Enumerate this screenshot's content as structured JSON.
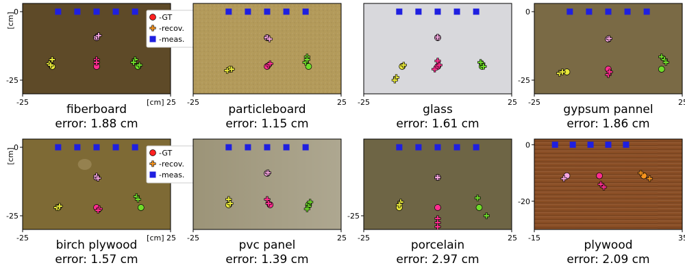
{
  "figure": {
    "unit_label": "[cm]",
    "error_prefix": "error: "
  },
  "legend": [
    {
      "label": "-GT",
      "marker": "circle",
      "color": "#ff2020"
    },
    {
      "label": "-recov.",
      "marker": "plus",
      "color": "#f7941d"
    },
    {
      "label": "-meas.",
      "marker": "square",
      "color": "#1f1fe0"
    }
  ],
  "chart_data": [
    {
      "type": "scatter",
      "title": "fiberboard",
      "error": "1.88 cm",
      "background": "#5e4a28",
      "texture": "plain",
      "xlim": [
        -25,
        25
      ],
      "ylim": [
        -30,
        3
      ],
      "xticks": [
        "-25",
        "[cm] 25"
      ],
      "yticks": [
        "0",
        "-25"
      ],
      "measured": [
        [
          -13,
          0
        ],
        [
          -6.5,
          0
        ],
        [
          0,
          0
        ],
        [
          6.5,
          0
        ],
        [
          13,
          0
        ]
      ],
      "gt": [
        [
          -15,
          -20
        ],
        [
          0,
          -20
        ],
        [
          14,
          -20
        ],
        [
          0,
          -9.5
        ]
      ],
      "recovered": [
        [
          -16,
          -19
        ],
        [
          -15.5,
          -19.5
        ],
        [
          -15,
          -17.5
        ],
        [
          0,
          -17.5
        ],
        [
          0,
          -18.5
        ],
        [
          13,
          -17.5
        ],
        [
          12.5,
          -18.5
        ],
        [
          14.5,
          -19.5
        ],
        [
          0,
          -9.2
        ],
        [
          0.7,
          -8.7
        ]
      ],
      "colors": [
        "#e8e83a",
        "#ff2e8f",
        "#6fdc2a",
        "#f7a6e0"
      ]
    },
    {
      "type": "scatter",
      "title": "particleboard",
      "error": "1.15 cm",
      "background": "#b39a5a",
      "texture": "speckle",
      "xlim": [
        -25,
        25
      ],
      "ylim": [
        -30,
        3
      ],
      "xticks": [
        "-25",
        "25"
      ],
      "yticks": [],
      "measured": [
        [
          -13,
          0
        ],
        [
          -6.5,
          0
        ],
        [
          0,
          0
        ],
        [
          6.5,
          0
        ],
        [
          13,
          0
        ]
      ],
      "gt": [
        [
          -12.5,
          -21
        ],
        [
          0,
          -20
        ],
        [
          14,
          -20
        ],
        [
          0,
          -9.5
        ]
      ],
      "recovered": [
        [
          -13.5,
          -21.5
        ],
        [
          -12,
          -21
        ],
        [
          0.5,
          -19.5
        ],
        [
          1,
          -19
        ],
        [
          13.5,
          -16.5
        ],
        [
          13,
          -18.5
        ],
        [
          13.5,
          -17.5
        ],
        [
          0,
          -9.5
        ],
        [
          0.8,
          -10
        ]
      ],
      "colors": [
        "#e8e83a",
        "#ff2e8f",
        "#6fdc2a",
        "#f7a6e0"
      ]
    },
    {
      "type": "scatter",
      "title": "glass",
      "error": "1.61 cm",
      "background": "#d8d8dc",
      "texture": "plain",
      "xlim": [
        -25,
        25
      ],
      "ylim": [
        -30,
        3
      ],
      "xticks": [
        "-25",
        "25"
      ],
      "yticks": [],
      "measured": [
        [
          -13,
          0
        ],
        [
          -6.5,
          0
        ],
        [
          0,
          0
        ],
        [
          6.5,
          0
        ],
        [
          13,
          0
        ]
      ],
      "gt": [
        [
          -12,
          -20
        ],
        [
          0,
          -20
        ],
        [
          15,
          -20
        ],
        [
          0,
          -9.5
        ]
      ],
      "recovered": [
        [
          -14,
          -24
        ],
        [
          -14.5,
          -25
        ],
        [
          -11.5,
          -19.5
        ],
        [
          0,
          -18
        ],
        [
          -1,
          -21
        ],
        [
          0.5,
          -19.5
        ],
        [
          15,
          -19
        ],
        [
          15.5,
          -20
        ],
        [
          14.5,
          -18.5
        ],
        [
          0,
          -9.3
        ]
      ],
      "colors": [
        "#e8e83a",
        "#ff2e8f",
        "#6fdc2a",
        "#f7a6e0"
      ]
    },
    {
      "type": "scatter",
      "title": "gypsum pannel",
      "error": "1.86 cm",
      "background": "#7a6a45",
      "texture": "plain",
      "xlim": [
        -25,
        25
      ],
      "ylim": [
        -30,
        3
      ],
      "xticks": [
        "-25",
        "25"
      ],
      "yticks": [
        "0",
        "-25"
      ],
      "measured": [
        [
          -13,
          0
        ],
        [
          -6.5,
          0
        ],
        [
          0,
          0
        ],
        [
          6.5,
          0
        ],
        [
          13,
          0
        ]
      ],
      "gt": [
        [
          -14,
          -22
        ],
        [
          0,
          -21
        ],
        [
          18,
          -21
        ],
        [
          0,
          -10
        ]
      ],
      "recovered": [
        [
          -16.5,
          -22.5
        ],
        [
          -15.5,
          -22
        ],
        [
          0,
          -23
        ],
        [
          0.5,
          -22
        ],
        [
          18,
          -16.5
        ],
        [
          19,
          -17.5
        ],
        [
          19.5,
          -18.5
        ],
        [
          0.3,
          -9.8
        ]
      ],
      "colors": [
        "#e8e83a",
        "#ff2e8f",
        "#6fdc2a",
        "#f7a6e0"
      ]
    },
    {
      "type": "scatter",
      "title": "birch plywood",
      "error": "1.57 cm",
      "background": "#7e6a35",
      "texture": "knot",
      "xlim": [
        -25,
        25
      ],
      "ylim": [
        -30,
        3
      ],
      "xticks": [
        "-25",
        "[cm] 25"
      ],
      "yticks": [
        "0",
        "-25"
      ],
      "measured": [
        [
          -13,
          0
        ],
        [
          -6.5,
          0
        ],
        [
          0,
          0
        ],
        [
          6.5,
          0
        ],
        [
          13,
          0
        ]
      ],
      "gt": [
        [
          -13,
          -22
        ],
        [
          0,
          -22
        ],
        [
          15,
          -22
        ],
        [
          0,
          -11
        ]
      ],
      "recovered": [
        [
          -13.5,
          -22
        ],
        [
          -12.5,
          -21.5
        ],
        [
          1,
          -22.5
        ],
        [
          0.5,
          -23
        ],
        [
          13.5,
          -18
        ],
        [
          14,
          -19
        ],
        [
          0,
          -10.5
        ],
        [
          0.5,
          -11.3
        ]
      ],
      "colors": [
        "#e8e83a",
        "#ff2e8f",
        "#6fdc2a",
        "#f7a6e0"
      ]
    },
    {
      "type": "scatter",
      "title": "pvc panel",
      "error": "1.39 cm",
      "background": "#9c9478",
      "texture": "gradient",
      "xlim": [
        -25,
        25
      ],
      "ylim": [
        -30,
        3
      ],
      "xticks": [
        "-25",
        "25"
      ],
      "yticks": [],
      "measured": [
        [
          -13,
          0
        ],
        [
          -6.5,
          0
        ],
        [
          0,
          0
        ],
        [
          6.5,
          0
        ],
        [
          13,
          0
        ]
      ],
      "gt": [
        [
          -13,
          -21
        ],
        [
          1,
          -21
        ],
        [
          14,
          -21
        ],
        [
          0,
          -9.5
        ]
      ],
      "recovered": [
        [
          -13,
          -19
        ],
        [
          -12.5,
          -20.5
        ],
        [
          0,
          -19
        ],
        [
          0.5,
          -20.5
        ],
        [
          14.5,
          -20
        ],
        [
          14,
          -21.5
        ],
        [
          13.5,
          -22.5
        ],
        [
          0.3,
          -9.3
        ]
      ],
      "colors": [
        "#e8e83a",
        "#ff2e8f",
        "#6fdc2a",
        "#f7a6e0"
      ]
    },
    {
      "type": "scatter",
      "title": "porcelain",
      "error": "2.97 cm",
      "background": "#6e6545",
      "texture": "plain",
      "xlim": [
        -25,
        25
      ],
      "ylim": [
        -30,
        3
      ],
      "xticks": [
        "-25",
        "25"
      ],
      "yticks": [
        "-25"
      ],
      "measured": [
        [
          -13,
          0
        ],
        [
          -6.5,
          0
        ],
        [
          0,
          0
        ],
        [
          6.5,
          0
        ],
        [
          13,
          0
        ]
      ],
      "gt": [
        [
          -13,
          -22
        ],
        [
          0,
          -22
        ],
        [
          14,
          -22
        ],
        [
          0,
          -11
        ]
      ],
      "recovered": [
        [
          -12.5,
          -20
        ],
        [
          -13,
          -21
        ],
        [
          0,
          -26
        ],
        [
          0,
          -27.5
        ],
        [
          0,
          -29
        ],
        [
          13.5,
          -18.5
        ],
        [
          16.5,
          -25
        ],
        [
          0,
          -11
        ]
      ],
      "colors": [
        "#e8e83a",
        "#ff2e8f",
        "#6fdc2a",
        "#f7a6e0"
      ]
    },
    {
      "type": "scatter",
      "title": "plywood",
      "error": "2.09 cm",
      "background": "#8a4e25",
      "texture": "grain",
      "xlim": [
        -15,
        35
      ],
      "ylim": [
        -30,
        2
      ],
      "xticks": [
        "-15",
        "35"
      ],
      "yticks": [
        "0",
        "-20"
      ],
      "measured": [
        [
          -8,
          0
        ],
        [
          -2,
          0
        ],
        [
          4,
          0
        ],
        [
          10,
          0
        ],
        [
          16,
          0
        ]
      ],
      "gt": [
        [
          -4,
          -11
        ],
        [
          7,
          -11
        ],
        [
          22,
          -11
        ]
      ],
      "recovered": [
        [
          -5,
          -12
        ],
        [
          7.5,
          -14
        ],
        [
          8.5,
          -15
        ],
        [
          21,
          -10
        ],
        [
          24,
          -12
        ]
      ],
      "colors": [
        "#f7a6e0",
        "#ff2e8f",
        "#f7941d"
      ]
    }
  ]
}
